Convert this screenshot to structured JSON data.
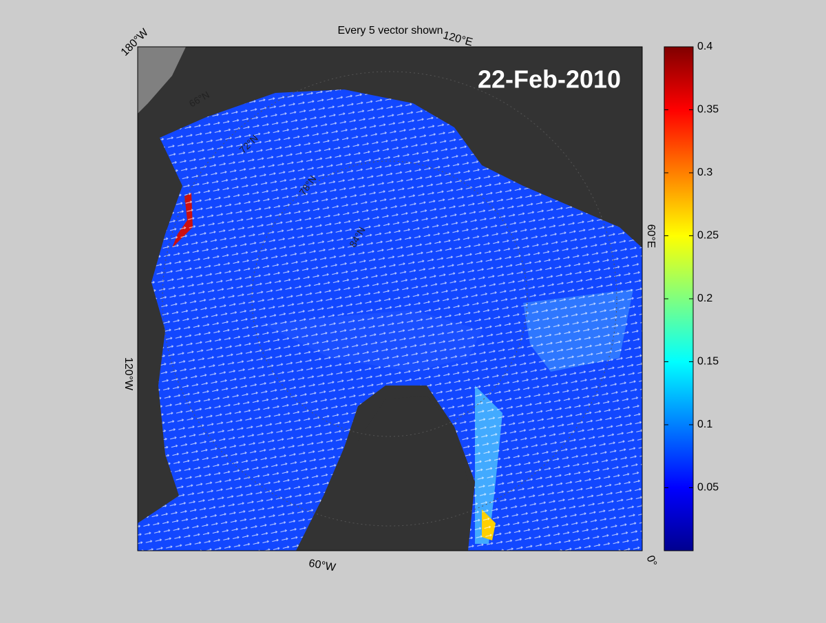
{
  "header": {
    "title": "Every 5 vector shown"
  },
  "map": {
    "date": "22-Feb-2010",
    "longitude_labels": [
      "180°W",
      "120°E",
      "60°E",
      "0°",
      "60°W",
      "120°W"
    ],
    "latitude_labels": [
      "66°N",
      "72°N",
      "78°N",
      "84°N"
    ]
  },
  "colorbar": {
    "lim": [
      0,
      0.4
    ],
    "ticks": [
      0.05,
      0.1,
      0.15,
      0.2,
      0.25,
      0.3,
      0.35,
      0.4
    ]
  }
}
